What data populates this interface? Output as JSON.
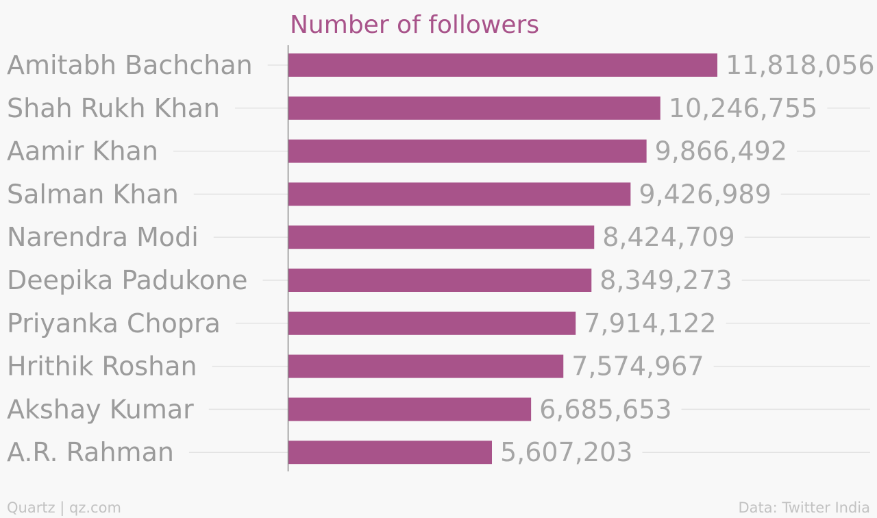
{
  "chart_data": {
    "type": "bar",
    "orientation": "horizontal",
    "title": "Number of followers",
    "categories": [
      "Amitabh Bachchan",
      "Shah Rukh Khan",
      "Aamir Khan",
      "Salman Khan",
      "Narendra Modi",
      "Deepika Padukone",
      "Priyanka Chopra",
      "Hrithik Roshan",
      "Akshay Kumar",
      "A.R. Rahman"
    ],
    "values": [
      11818056,
      10246755,
      9866492,
      9426989,
      8424709,
      8349273,
      7914122,
      7574967,
      6685653,
      5607203
    ],
    "value_labels": [
      "11,818,056",
      "10,246,755",
      "9,866,492",
      "9,426,989",
      "8,424,709",
      "8,349,273",
      "7,914,122",
      "7,574,967",
      "6,685,653",
      "5,607,203"
    ],
    "xlabel": "",
    "ylabel": "",
    "grid": true,
    "legend": "none",
    "colors": {
      "bar": "#a8538a",
      "title": "#a8538a",
      "label": "#9b9b9b",
      "value": "#a6a6a6",
      "grid": "#e3e3e3",
      "axis": "#8c8c8c",
      "background": "#f8f8f8",
      "footer": "#c2c2c2"
    }
  },
  "footer": {
    "left": "Quartz | qz.com",
    "right": "Data: Twitter India"
  }
}
